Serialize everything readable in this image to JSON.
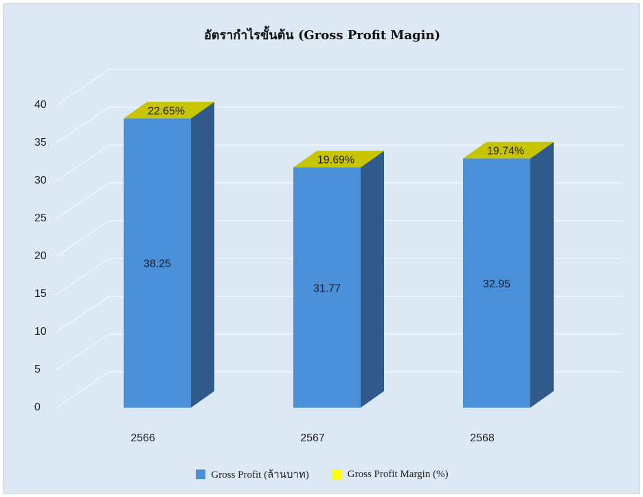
{
  "chart_data": {
    "type": "bar",
    "title": "อัตรากำไรขั้นต้น (Gross Profit Magin)",
    "categories": [
      "2566",
      "2567",
      "2568"
    ],
    "series": [
      {
        "name": "Gross Profit (ล้านบาท)",
        "values": [
          38.25,
          31.77,
          32.95
        ],
        "labels": [
          "38.25",
          "31.77",
          "32.95"
        ],
        "color": "#4a90d9"
      },
      {
        "name": "Gross Profit Margin (%)",
        "values": [
          22.65,
          19.69,
          19.74
        ],
        "labels": [
          "22.65%",
          "19.69%",
          "19.74%"
        ],
        "color": "#c9c400"
      }
    ],
    "legend_swatch_colors": [
      "#4a90d9",
      "#ffff00"
    ],
    "yticks": [
      "0",
      "5",
      "10",
      "15",
      "20",
      "25",
      "30",
      "35",
      "40"
    ],
    "ylim": [
      0,
      40
    ],
    "grid": true,
    "legend_position": "bottom",
    "style": "3d-column"
  }
}
